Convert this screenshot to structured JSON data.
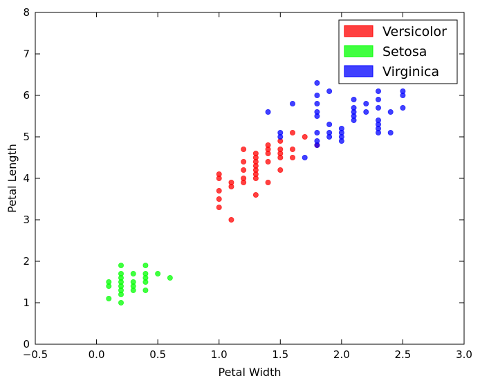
{
  "chart_data": {
    "type": "scatter",
    "title": "",
    "xlabel": "Petal Width",
    "ylabel": "Petal Length",
    "xlim": [
      -0.5,
      3.0
    ],
    "ylim": [
      0,
      8
    ],
    "xticks": [
      -0.5,
      0.0,
      0.5,
      1.0,
      1.5,
      2.0,
      2.5,
      3.0
    ],
    "xtick_labels": [
      "−0.5",
      "0.0",
      "0.5",
      "1.0",
      "1.5",
      "2.0",
      "2.5",
      "3.0"
    ],
    "yticks": [
      0,
      1,
      2,
      3,
      4,
      5,
      6,
      7,
      8
    ],
    "ytick_labels": [
      "0",
      "1",
      "2",
      "3",
      "4",
      "5",
      "6",
      "7",
      "8"
    ],
    "grid": false,
    "legend_position": "top-right",
    "series": [
      {
        "name": "Versicolor",
        "color": "#ff0000",
        "points": [
          [
            1.0,
            4.1
          ],
          [
            1.0,
            4.0
          ],
          [
            1.0,
            3.7
          ],
          [
            1.0,
            3.5
          ],
          [
            1.0,
            3.3
          ],
          [
            1.1,
            3.9
          ],
          [
            1.1,
            3.8
          ],
          [
            1.1,
            3.0
          ],
          [
            1.2,
            4.7
          ],
          [
            1.2,
            4.4
          ],
          [
            1.2,
            4.2
          ],
          [
            1.2,
            4.0
          ],
          [
            1.2,
            3.9
          ],
          [
            1.3,
            4.6
          ],
          [
            1.3,
            4.5
          ],
          [
            1.3,
            4.4
          ],
          [
            1.3,
            4.3
          ],
          [
            1.3,
            4.2
          ],
          [
            1.3,
            4.1
          ],
          [
            1.3,
            4.0
          ],
          [
            1.3,
            3.6
          ],
          [
            1.4,
            4.8
          ],
          [
            1.4,
            4.7
          ],
          [
            1.4,
            4.6
          ],
          [
            1.4,
            4.4
          ],
          [
            1.4,
            3.9
          ],
          [
            1.5,
            4.9
          ],
          [
            1.5,
            4.7
          ],
          [
            1.5,
            4.6
          ],
          [
            1.5,
            4.5
          ],
          [
            1.5,
            4.2
          ],
          [
            1.6,
            5.1
          ],
          [
            1.6,
            4.7
          ],
          [
            1.6,
            4.5
          ],
          [
            1.7,
            5.0
          ],
          [
            1.8,
            4.8
          ]
        ]
      },
      {
        "name": "Setosa",
        "color": "#00ff00",
        "points": [
          [
            0.1,
            1.5
          ],
          [
            0.1,
            1.4
          ],
          [
            0.1,
            1.1
          ],
          [
            0.2,
            1.9
          ],
          [
            0.2,
            1.7
          ],
          [
            0.2,
            1.6
          ],
          [
            0.2,
            1.5
          ],
          [
            0.2,
            1.4
          ],
          [
            0.2,
            1.3
          ],
          [
            0.2,
            1.2
          ],
          [
            0.2,
            1.0
          ],
          [
            0.3,
            1.7
          ],
          [
            0.3,
            1.5
          ],
          [
            0.3,
            1.4
          ],
          [
            0.3,
            1.3
          ],
          [
            0.4,
            1.9
          ],
          [
            0.4,
            1.7
          ],
          [
            0.4,
            1.6
          ],
          [
            0.4,
            1.5
          ],
          [
            0.4,
            1.3
          ],
          [
            0.5,
            1.7
          ],
          [
            0.6,
            1.6
          ]
        ]
      },
      {
        "name": "Virginica",
        "color": "#0000ff",
        "points": [
          [
            1.4,
            5.6
          ],
          [
            1.5,
            5.1
          ],
          [
            1.5,
            5.0
          ],
          [
            1.6,
            5.8
          ],
          [
            1.7,
            4.5
          ],
          [
            1.8,
            6.3
          ],
          [
            1.8,
            6.0
          ],
          [
            1.8,
            5.8
          ],
          [
            1.8,
            5.6
          ],
          [
            1.8,
            5.5
          ],
          [
            1.8,
            5.1
          ],
          [
            1.8,
            4.9
          ],
          [
            1.8,
            4.8
          ],
          [
            1.9,
            6.1
          ],
          [
            1.9,
            5.3
          ],
          [
            1.9,
            5.1
          ],
          [
            1.9,
            5.0
          ],
          [
            2.0,
            5.2
          ],
          [
            2.0,
            5.1
          ],
          [
            2.0,
            5.0
          ],
          [
            2.0,
            4.9
          ],
          [
            2.1,
            5.9
          ],
          [
            2.1,
            5.7
          ],
          [
            2.1,
            5.6
          ],
          [
            2.1,
            5.5
          ],
          [
            2.1,
            5.4
          ],
          [
            2.2,
            5.8
          ],
          [
            2.2,
            5.6
          ],
          [
            2.3,
            6.1
          ],
          [
            2.3,
            5.9
          ],
          [
            2.3,
            5.7
          ],
          [
            2.3,
            5.4
          ],
          [
            2.3,
            5.3
          ],
          [
            2.3,
            5.2
          ],
          [
            2.3,
            5.1
          ],
          [
            2.4,
            5.6
          ],
          [
            2.4,
            5.1
          ],
          [
            2.5,
            6.1
          ],
          [
            2.5,
            6.0
          ],
          [
            2.5,
            5.7
          ]
        ]
      }
    ]
  }
}
